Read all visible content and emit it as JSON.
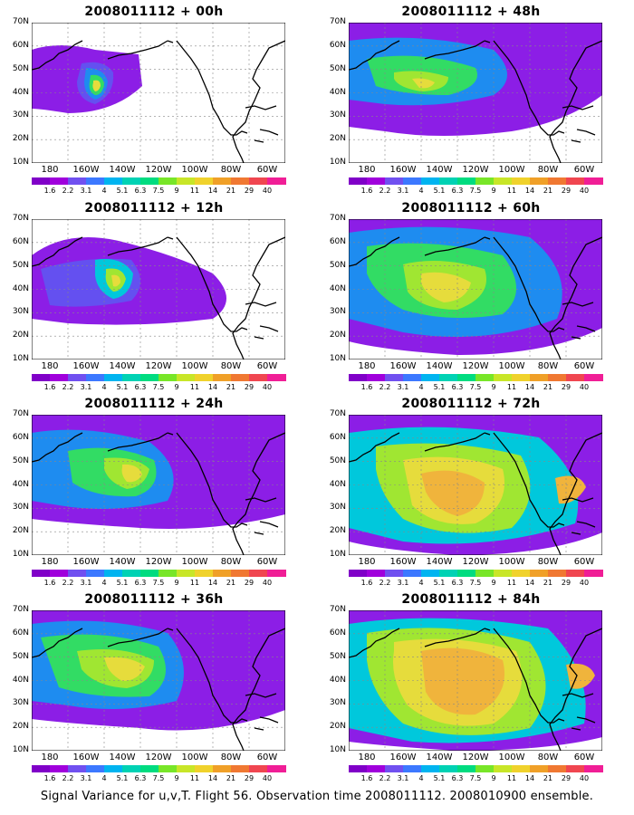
{
  "figure": {
    "caption": "Signal Variance for u,v,T. Flight 56. Observation time 2008011112. 2008010900 ensemble."
  },
  "panels": [
    {
      "title": "2008011112 + 00h",
      "hour": "00h",
      "column": "left",
      "row": 1
    },
    {
      "title": "2008011112 + 48h",
      "hour": "48h",
      "column": "right",
      "row": 1
    },
    {
      "title": "2008011112 + 12h",
      "hour": "12h",
      "column": "left",
      "row": 2
    },
    {
      "title": "2008011112 + 60h",
      "hour": "60h",
      "column": "right",
      "row": 2
    },
    {
      "title": "2008011112 + 24h",
      "hour": "24h",
      "column": "left",
      "row": 3
    },
    {
      "title": "2008011112 + 72h",
      "hour": "72h",
      "column": "right",
      "row": 3
    },
    {
      "title": "2008011112 + 36h",
      "hour": "36h",
      "column": "left",
      "row": 4
    },
    {
      "title": "2008011112 + 84h",
      "hour": "84h",
      "column": "right",
      "row": 4
    }
  ],
  "axes": {
    "lat_labels": [
      "70N",
      "60N",
      "50N",
      "40N",
      "30N",
      "20N",
      "10N"
    ],
    "lon_labels": [
      "180",
      "160W",
      "140W",
      "120W",
      "100W",
      "80W",
      "60W"
    ]
  },
  "colorbar": {
    "labels": [
      "1.6",
      "2.2",
      "3.1",
      "4",
      "5.1",
      "6.3",
      "7.5",
      "9",
      "11",
      "14",
      "21",
      "29",
      "40"
    ],
    "colors": [
      "#8000c8",
      "#a000dc",
      "#7050f0",
      "#3c78ff",
      "#00b4f0",
      "#00d2b4",
      "#00dc80",
      "#78e628",
      "#c8e628",
      "#f0d22c",
      "#f0a028",
      "#f07832",
      "#f04650",
      "#f01e96"
    ]
  },
  "map_colors": {
    "purple": "#8c1ee6",
    "violet": "#6450f0",
    "blue": "#1e8cf0",
    "cyan": "#00c8dc",
    "green": "#32dc64",
    "lime": "#a0e632",
    "yellow": "#e6dc3c",
    "orange": "#f0b43c"
  }
}
